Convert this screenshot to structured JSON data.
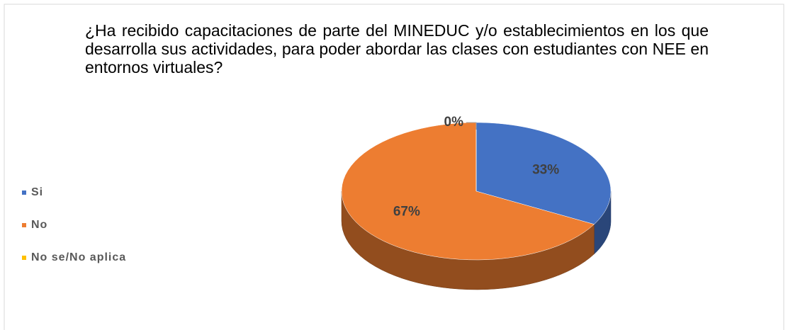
{
  "chart_data": {
    "type": "pie",
    "title": "¿Ha recibido capacitaciones de parte del MINEDUC y/o establecimientos en los que desarrolla sus actividades, para poder abordar las clases con estudiantes con NEE en entornos virtuales?",
    "categories": [
      "Si",
      "No",
      "No se/No aplica"
    ],
    "values": [
      33,
      67,
      0
    ],
    "value_labels": [
      "33%",
      "67%",
      "0%"
    ],
    "colors": [
      "#4472c4",
      "#ed7d31",
      "#ffc000"
    ],
    "legend": "left"
  }
}
